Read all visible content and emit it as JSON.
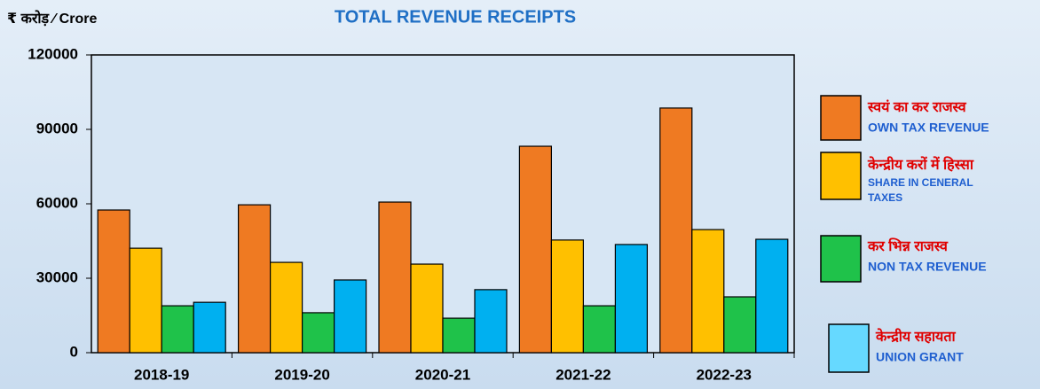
{
  "chart_data": {
    "type": "bar",
    "title": "TOTAL REVENUE RECEIPTS",
    "unit_label": "₹ करोड़ ⁄ Crore",
    "categories": [
      "2018-19",
      "2019-20",
      "2020-21",
      "2021-22",
      "2022-23"
    ],
    "series": [
      {
        "name": "स्वयं का कर राजस्व",
        "name_en": "OWN TAX REVENUE",
        "color": "#ef7a22",
        "values": [
          57500,
          59600,
          60700,
          83200,
          98600
        ]
      },
      {
        "name": "केन्द्रीय करों में हिस्सा",
        "name_en": "SHARE IN CENERAL TAXES",
        "color": "#ffc000",
        "values": [
          42100,
          36400,
          35700,
          45400,
          49600
        ]
      },
      {
        "name": "कर भिन्न राजस्व",
        "name_en": "NON TAX REVENUE",
        "color": "#1fc24a",
        "values": [
          18900,
          16100,
          13900,
          18900,
          22500
        ]
      },
      {
        "name": "केन्द्रीय सहायता",
        "name_en": "UNION GRANT",
        "color": "#00b0f0",
        "values": [
          20300,
          29300,
          25400,
          43600,
          45700
        ]
      }
    ],
    "ylim": [
      0,
      120000
    ],
    "yticks": [
      0,
      30000,
      60000,
      90000,
      120000
    ],
    "grid": false
  }
}
